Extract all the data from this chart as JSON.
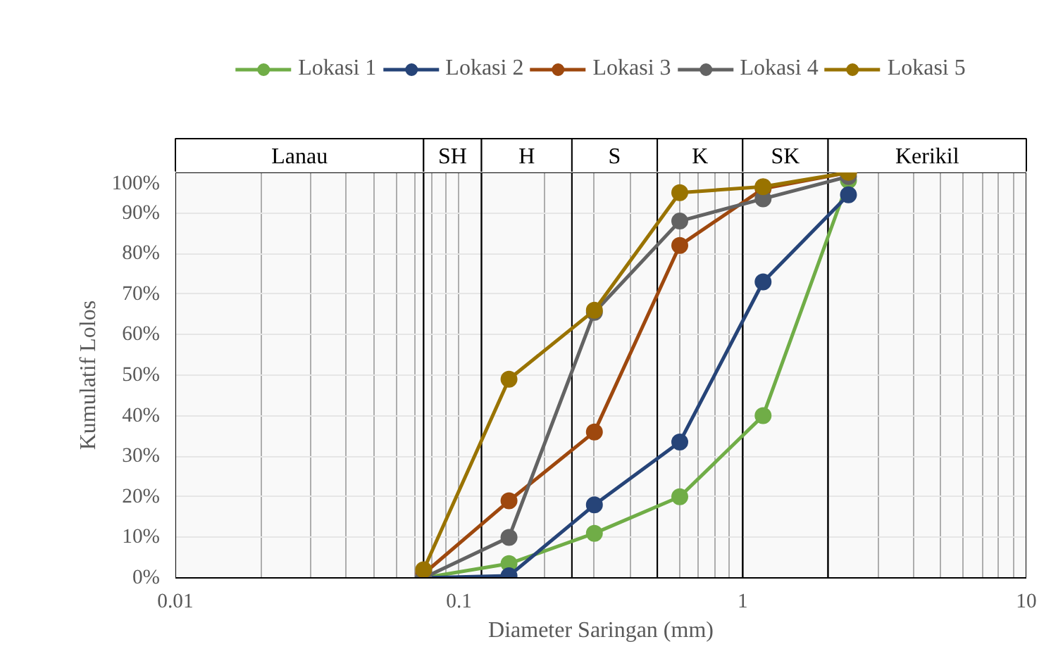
{
  "chart_data": {
    "type": "line",
    "xlabel": "Diameter Saringan (mm)",
    "ylabel": "Kumulatif Lolos",
    "x": [
      0.075,
      0.15,
      0.3,
      0.6,
      1.18,
      2.36
    ],
    "series": [
      {
        "name": "Lokasi 1",
        "color": "#70ad47",
        "values": [
          0,
          3.5,
          11,
          20,
          40,
          98
        ]
      },
      {
        "name": "Lokasi 2",
        "color": "#264478",
        "values": [
          0,
          0.5,
          18,
          33.5,
          73,
          94.5
        ]
      },
      {
        "name": "Lokasi 3",
        "color": "#9e480e",
        "values": [
          1,
          19,
          36,
          82,
          96,
          100
        ]
      },
      {
        "name": "Lokasi 4",
        "color": "#636363",
        "values": [
          0,
          10,
          65.5,
          88,
          93.5,
          99
        ]
      },
      {
        "name": "Lokasi 5",
        "color": "#997300",
        "values": [
          2,
          49,
          66,
          95,
          96.5,
          100
        ]
      }
    ],
    "log": "x",
    "xlim": [
      0.01,
      10
    ],
    "xticks": [
      0.01,
      0.1,
      1,
      10
    ],
    "ylim": [
      0,
      100
    ],
    "yticks": [
      {
        "value": 0,
        "label": "0%"
      },
      {
        "value": 10,
        "label": "10%"
      },
      {
        "value": 20,
        "label": "20%"
      },
      {
        "value": 30,
        "label": "30%"
      },
      {
        "value": 40,
        "label": "40%"
      },
      {
        "value": 50,
        "label": "50%"
      },
      {
        "value": 60,
        "label": "60%"
      },
      {
        "value": 70,
        "label": "70%"
      },
      {
        "value": 80,
        "label": "80%"
      },
      {
        "value": 90,
        "label": "90%"
      },
      {
        "value": 100,
        "label": "100%"
      }
    ],
    "bands": [
      {
        "axis": "x",
        "from": 0.01,
        "to": 0.075,
        "label": "Lanau"
      },
      {
        "axis": "x",
        "from": 0.075,
        "to": 0.12,
        "label": "SH"
      },
      {
        "axis": "x",
        "from": 0.12,
        "to": 0.25,
        "label": "H"
      },
      {
        "axis": "x",
        "from": 0.25,
        "to": 0.5,
        "label": "S"
      },
      {
        "axis": "x",
        "from": 0.5,
        "to": 1,
        "label": "K"
      },
      {
        "axis": "x",
        "from": 1,
        "to": 2,
        "label": "SK"
      },
      {
        "axis": "x",
        "from": 2,
        "to": 10,
        "label": "Kerikil"
      }
    ],
    "grid": true,
    "legend": "top",
    "marker": "circle",
    "line_style": "solid"
  }
}
